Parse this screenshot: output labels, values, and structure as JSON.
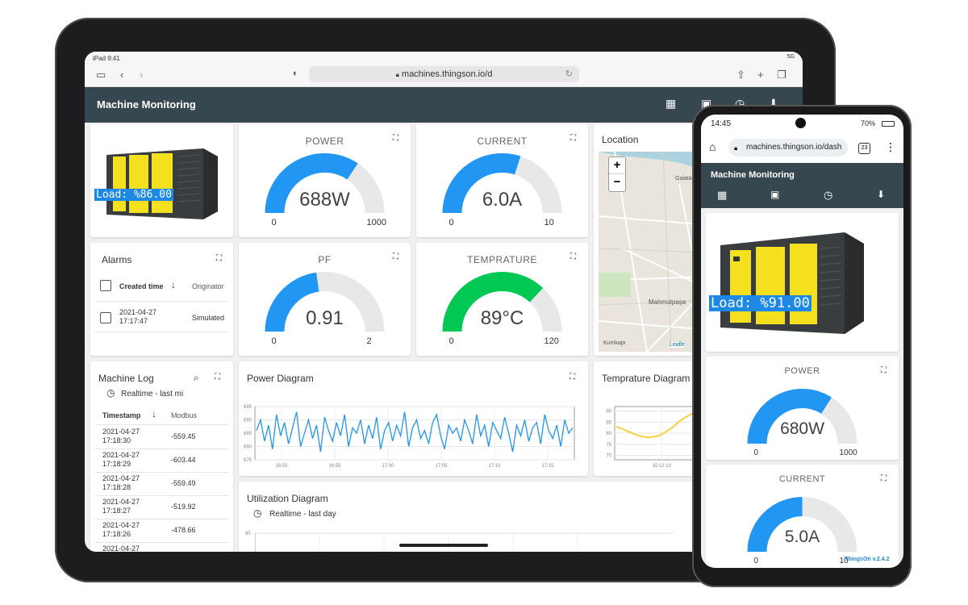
{
  "tablet": {
    "status": {
      "time": "iPad 9:41",
      "signal": "5G"
    },
    "browser": {
      "url": "machines.thingson.io/d"
    },
    "app": {
      "title": "Machine Monitoring"
    },
    "machine_card": {
      "load": "Load: %86.00"
    },
    "gauges": [
      {
        "label": "POWER",
        "value": "688W",
        "min": "0",
        "max": "1000",
        "fraction": 0.688,
        "color": "#2196f3"
      },
      {
        "label": "CURRENT",
        "value": "6.0A",
        "min": "0",
        "max": "10",
        "fraction": 0.6,
        "color": "#2196f3"
      },
      {
        "label": "PF",
        "value": "0.91",
        "min": "0",
        "max": "2",
        "fraction": 0.455,
        "color": "#2196f3"
      },
      {
        "label": "TEMPRATURE",
        "value": "89°C",
        "min": "0",
        "max": "120",
        "fraction": 0.74,
        "color": "#00c853"
      }
    ],
    "location": {
      "title": "Location",
      "zoom_in": "+",
      "zoom_out": "−",
      "attribution": "Leafle",
      "places": [
        "Mahmutpaşa",
        "Kumkapı",
        "Galata Köprü"
      ]
    },
    "alarms": {
      "title": "Alarms",
      "columns": [
        "Created time",
        "Originator"
      ],
      "rows": [
        {
          "created": "2021-04-27 17:17:47",
          "originator": "Simulated"
        }
      ]
    },
    "machine_log": {
      "title": "Machine Log",
      "realtime": "Realtime - last mi",
      "columns": [
        "Timestamp",
        "Modbus"
      ],
      "rows": [
        {
          "ts": "2021-04-27 17:18:30",
          "val": "-559.45"
        },
        {
          "ts": "2021-04-27 17:18:29",
          "val": "-603.44"
        },
        {
          "ts": "2021-04-27 17:18:28",
          "val": "-559.49"
        },
        {
          "ts": "2021-04-27 17:18:27",
          "val": "-519.92"
        },
        {
          "ts": "2021-04-27 17:18:26",
          "val": "-478.66"
        },
        {
          "ts": "2021-04-27",
          "val": ""
        }
      ]
    },
    "power_diagram": {
      "title": "Power Diagram"
    },
    "temp_diagram": {
      "title": "Temprature Diagram"
    },
    "utilization": {
      "title": "Utilization Diagram",
      "realtime": "Realtime - last day",
      "y_tick": "80"
    }
  },
  "chart_data": [
    {
      "type": "line",
      "title": "Power Diagram",
      "x_ticks": [
        "16:50",
        "16:55",
        "17:00",
        "17:05",
        "17:10",
        "17:15"
      ],
      "y_ticks": [
        675,
        680,
        685,
        690,
        695
      ],
      "ylim": [
        675,
        695
      ],
      "series": [
        {
          "values": [
            686,
            690,
            682,
            688,
            679,
            692,
            684,
            689,
            681,
            687,
            693,
            680,
            685,
            690,
            683,
            688,
            678,
            691,
            686,
            682,
            689,
            684,
            692,
            680,
            687,
            685,
            690,
            681,
            688,
            683,
            691,
            679,
            686,
            689,
            682,
            688,
            684,
            693,
            680,
            687,
            690,
            683,
            686,
            681,
            689,
            692,
            684,
            679,
            688,
            685,
            687,
            682,
            690,
            686,
            681,
            692,
            684,
            688,
            680,
            689,
            686,
            683,
            691,
            685,
            678,
            688,
            684,
            690,
            682,
            687,
            689,
            681,
            692,
            686,
            683,
            688,
            680,
            690,
            685,
            687
          ]
        }
      ]
    },
    {
      "type": "line",
      "title": "Temprature Diagram",
      "x_ticks": [
        "15:12:10",
        "15:12:20"
      ],
      "y_ticks": [
        70,
        75,
        80,
        85,
        90
      ],
      "ylim": [
        68,
        92
      ],
      "series": [
        {
          "values": [
            83,
            81,
            79,
            78,
            79,
            82,
            86,
            89,
            90,
            88,
            84,
            79,
            74,
            71,
            70,
            70,
            71,
            72
          ]
        }
      ]
    }
  ],
  "phone": {
    "status": {
      "time": "14:45",
      "battery": "70%"
    },
    "browser": {
      "url": "machines.thingson.io/dash",
      "tabs": "23"
    },
    "app": {
      "title": "Machine Monitoring"
    },
    "machine_card": {
      "load": "Load: %91.00"
    },
    "gauges": [
      {
        "label": "POWER",
        "value": "680W",
        "min": "0",
        "max": "1000",
        "fraction": 0.68,
        "color": "#2196f3"
      },
      {
        "label": "CURRENT",
        "value": "5.0A",
        "min": "0",
        "max": "10",
        "fraction": 0.5,
        "color": "#2196f3"
      }
    ],
    "footer": "ThingsOn v.2.4.2"
  }
}
